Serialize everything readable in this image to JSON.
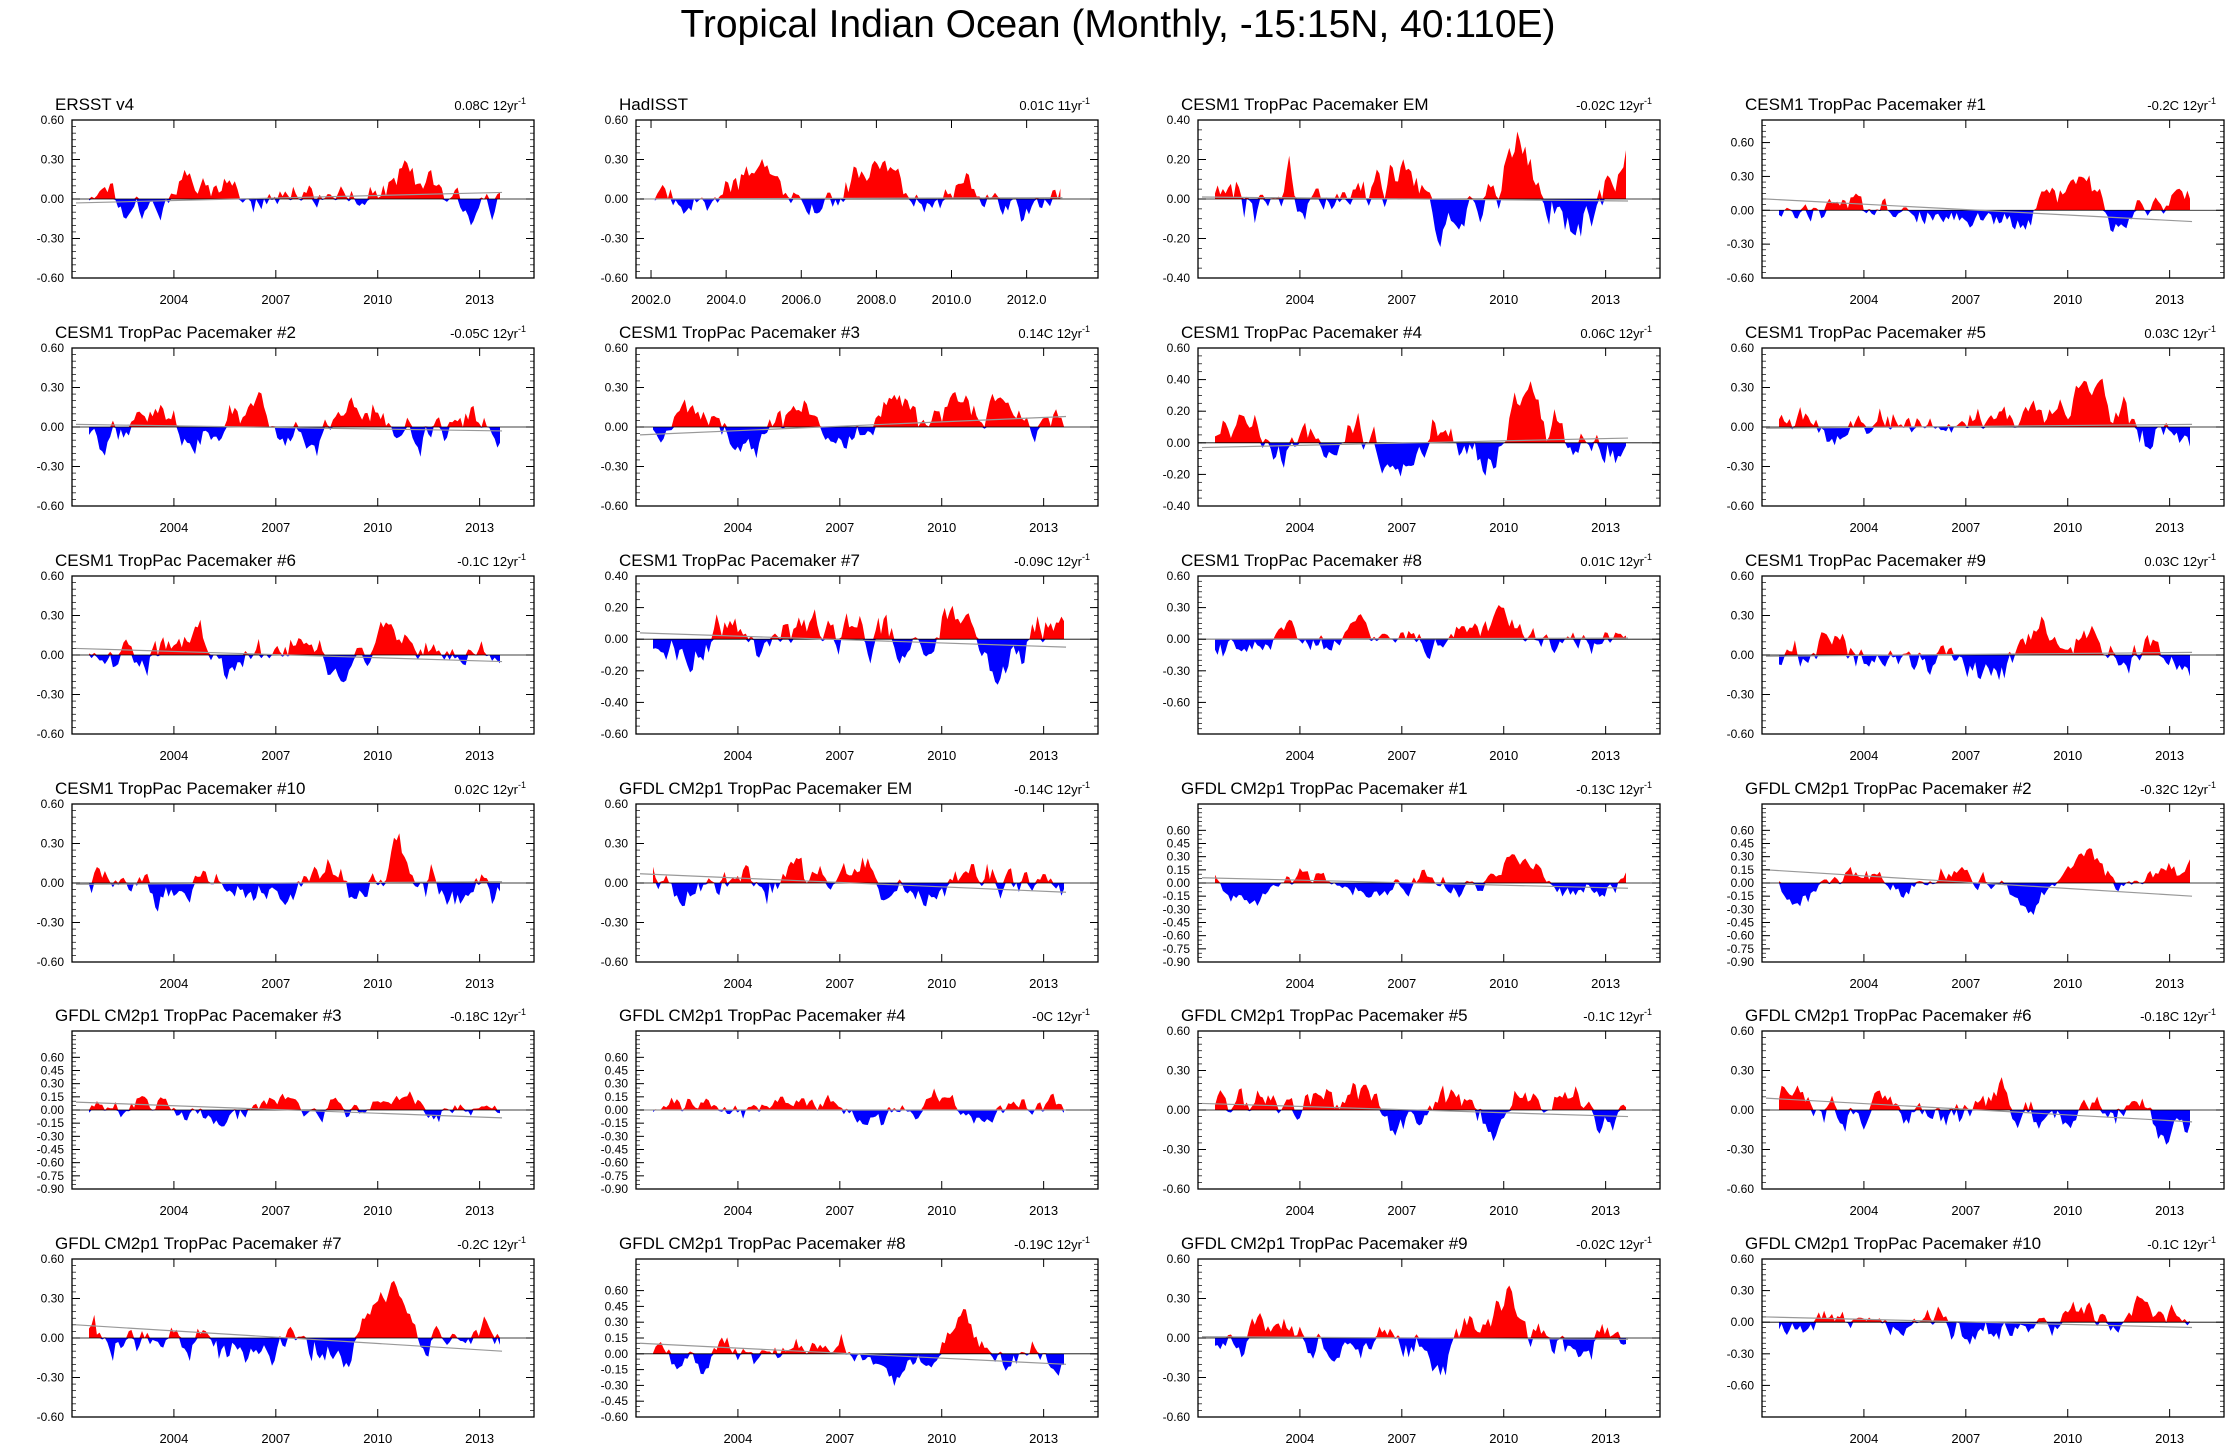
{
  "figure": {
    "title": "Tropical Indian Ocean (Monthly, -15:15N, 40:110E)"
  },
  "colors": {
    "positive": "#ff0000",
    "negative": "#0000ff",
    "axis": "#000000",
    "trend": "#999999"
  },
  "chart_data": [
    {
      "type": "area",
      "name": "ERSST v4",
      "trend_label": "0.08C 12yr",
      "trend_suffix": "-1",
      "ylim": [
        -0.6,
        0.6
      ],
      "yticks": [
        -0.6,
        -0.3,
        0.0,
        0.3,
        0.6
      ],
      "ytick_labels": [
        "-0.60",
        "-0.30",
        "0.00",
        "0.30",
        "0.60"
      ],
      "xlim": [
        2001,
        2014.6
      ],
      "xticks": [
        2004,
        2007,
        2010,
        2013
      ],
      "xtick_labels": [
        "2004",
        "2007",
        "2010",
        "2013"
      ],
      "trend_line": [
        -0.03,
        0.05
      ],
      "seed": 1
    },
    {
      "type": "area",
      "name": "HadISST",
      "trend_label": "0.01C 11yr",
      "trend_suffix": "-1",
      "ylim": [
        -0.6,
        0.6
      ],
      "yticks": [
        -0.6,
        -0.3,
        0.0,
        0.3,
        0.6
      ],
      "ytick_labels": [
        "-0.60",
        "-0.30",
        "0.00",
        "0.30",
        "0.60"
      ],
      "xlim": [
        2001.6,
        2013.9
      ],
      "xticks": [
        2002,
        2004,
        2006,
        2008,
        2010,
        2012
      ],
      "xtick_labels": [
        "2002.0",
        "2004.0",
        "2006.0",
        "2008.0",
        "2010.0",
        "2012.0"
      ],
      "trend_line": [
        0.0,
        0.01
      ],
      "seed": 2
    },
    {
      "type": "area",
      "name": "CESM1 TropPac Pacemaker EM",
      "trend_label": "-0.02C 12yr",
      "trend_suffix": "-1",
      "ylim": [
        -0.4,
        0.4
      ],
      "yticks": [
        -0.4,
        -0.2,
        0.0,
        0.2,
        0.4
      ],
      "ytick_labels": [
        "-0.40",
        "-0.20",
        "0.00",
        "0.20",
        "0.40"
      ],
      "xlim": [
        2001,
        2014.6
      ],
      "xticks": [
        2004,
        2007,
        2010,
        2013
      ],
      "xtick_labels": [
        "2004",
        "2007",
        "2010",
        "2013"
      ],
      "trend_line": [
        0.01,
        -0.01
      ],
      "seed": 3
    },
    {
      "type": "area",
      "name": "CESM1 TropPac Pacemaker #1",
      "trend_label": "-0.2C 12yr",
      "trend_suffix": "-1",
      "ylim": [
        -0.6,
        0.8
      ],
      "yticks": [
        -0.6,
        -0.3,
        0.0,
        0.3,
        0.6
      ],
      "ytick_labels": [
        "-0.60",
        "-0.30",
        "0.00",
        "0.30",
        "0.60"
      ],
      "xlim": [
        2001,
        2014.6
      ],
      "xticks": [
        2004,
        2007,
        2010,
        2013
      ],
      "xtick_labels": [
        "2004",
        "2007",
        "2010",
        "2013"
      ],
      "trend_line": [
        0.1,
        -0.1
      ],
      "seed": 4
    },
    {
      "type": "area",
      "name": "CESM1 TropPac Pacemaker #2",
      "trend_label": "-0.05C 12yr",
      "trend_suffix": "-1",
      "ylim": [
        -0.6,
        0.6
      ],
      "yticks": [
        -0.6,
        -0.3,
        0.0,
        0.3,
        0.6
      ],
      "ytick_labels": [
        "-0.60",
        "-0.30",
        "0.00",
        "0.30",
        "0.60"
      ],
      "xlim": [
        2001,
        2014.6
      ],
      "xticks": [
        2004,
        2007,
        2010,
        2013
      ],
      "xtick_labels": [
        "2004",
        "2007",
        "2010",
        "2013"
      ],
      "trend_line": [
        0.02,
        -0.03
      ],
      "seed": 5
    },
    {
      "type": "area",
      "name": "CESM1 TropPac Pacemaker #3",
      "trend_label": "0.14C 12yr",
      "trend_suffix": "-1",
      "ylim": [
        -0.6,
        0.6
      ],
      "yticks": [
        -0.6,
        -0.3,
        0.0,
        0.3,
        0.6
      ],
      "ytick_labels": [
        "-0.60",
        "-0.30",
        "0.00",
        "0.30",
        "0.60"
      ],
      "xlim": [
        2001,
        2014.6
      ],
      "xticks": [
        2004,
        2007,
        2010,
        2013
      ],
      "xtick_labels": [
        "2004",
        "2007",
        "2010",
        "2013"
      ],
      "trend_line": [
        -0.06,
        0.08
      ],
      "seed": 6
    },
    {
      "type": "area",
      "name": "CESM1 TropPac Pacemaker #4",
      "trend_label": "0.06C 12yr",
      "trend_suffix": "-1",
      "ylim": [
        -0.4,
        0.6
      ],
      "yticks": [
        -0.4,
        -0.2,
        0.0,
        0.2,
        0.4,
        0.6
      ],
      "ytick_labels": [
        "-0.40",
        "-0.20",
        "0.00",
        "0.20",
        "0.40",
        "0.60"
      ],
      "xlim": [
        2001,
        2014.6
      ],
      "xticks": [
        2004,
        2007,
        2010,
        2013
      ],
      "xtick_labels": [
        "2004",
        "2007",
        "2010",
        "2013"
      ],
      "trend_line": [
        -0.03,
        0.03
      ],
      "seed": 7
    },
    {
      "type": "area",
      "name": "CESM1 TropPac Pacemaker #5",
      "trend_label": "0.03C 12yr",
      "trend_suffix": "-1",
      "ylim": [
        -0.6,
        0.6
      ],
      "yticks": [
        -0.6,
        -0.3,
        0.0,
        0.3,
        0.6
      ],
      "ytick_labels": [
        "-0.60",
        "-0.30",
        "0.00",
        "0.30",
        "0.60"
      ],
      "xlim": [
        2001,
        2014.6
      ],
      "xticks": [
        2004,
        2007,
        2010,
        2013
      ],
      "xtick_labels": [
        "2004",
        "2007",
        "2010",
        "2013"
      ],
      "trend_line": [
        -0.01,
        0.02
      ],
      "seed": 8
    },
    {
      "type": "area",
      "name": "CESM1 TropPac Pacemaker #6",
      "trend_label": "-0.1C 12yr",
      "trend_suffix": "-1",
      "ylim": [
        -0.6,
        0.6
      ],
      "yticks": [
        -0.6,
        -0.3,
        0.0,
        0.3,
        0.6
      ],
      "ytick_labels": [
        "-0.60",
        "-0.30",
        "0.00",
        "0.30",
        "0.60"
      ],
      "xlim": [
        2001,
        2014.6
      ],
      "xticks": [
        2004,
        2007,
        2010,
        2013
      ],
      "xtick_labels": [
        "2004",
        "2007",
        "2010",
        "2013"
      ],
      "trend_line": [
        0.05,
        -0.05
      ],
      "seed": 9
    },
    {
      "type": "area",
      "name": "CESM1 TropPac Pacemaker #7",
      "trend_label": "-0.09C 12yr",
      "trend_suffix": "-1",
      "ylim": [
        -0.6,
        0.4
      ],
      "yticks": [
        -0.6,
        -0.4,
        -0.2,
        0.0,
        0.2,
        0.4
      ],
      "ytick_labels": [
        "-0.60",
        "-0.40",
        "-0.20",
        "0.00",
        "0.20",
        "0.40"
      ],
      "xlim": [
        2001,
        2014.6
      ],
      "xticks": [
        2004,
        2007,
        2010,
        2013
      ],
      "xtick_labels": [
        "2004",
        "2007",
        "2010",
        "2013"
      ],
      "trend_line": [
        0.04,
        -0.05
      ],
      "seed": 10
    },
    {
      "type": "area",
      "name": "CESM1 TropPac Pacemaker #8",
      "trend_label": "0.01C 12yr",
      "trend_suffix": "-1",
      "ylim": [
        -0.9,
        0.6
      ],
      "yticks": [
        -0.6,
        -0.3,
        0.0,
        0.3,
        0.6
      ],
      "ytick_labels": [
        "-0.60",
        "-0.30",
        "0.00",
        "0.30",
        "0.60"
      ],
      "xlim": [
        2001,
        2014.6
      ],
      "xticks": [
        2004,
        2007,
        2010,
        2013
      ],
      "xtick_labels": [
        "2004",
        "2007",
        "2010",
        "2013"
      ],
      "trend_line": [
        0.0,
        0.01
      ],
      "seed": 11
    },
    {
      "type": "area",
      "name": "CESM1 TropPac Pacemaker #9",
      "trend_label": "0.03C 12yr",
      "trend_suffix": "-1",
      "ylim": [
        -0.6,
        0.6
      ],
      "yticks": [
        -0.6,
        -0.3,
        0.0,
        0.3,
        0.6
      ],
      "ytick_labels": [
        "-0.60",
        "-0.30",
        "0.00",
        "0.30",
        "0.60"
      ],
      "xlim": [
        2001,
        2014.6
      ],
      "xticks": [
        2004,
        2007,
        2010,
        2013
      ],
      "xtick_labels": [
        "2004",
        "2007",
        "2010",
        "2013"
      ],
      "trend_line": [
        -0.01,
        0.02
      ],
      "seed": 12
    },
    {
      "type": "area",
      "name": "CESM1 TropPac Pacemaker #10",
      "trend_label": "0.02C 12yr",
      "trend_suffix": "-1",
      "ylim": [
        -0.6,
        0.6
      ],
      "yticks": [
        -0.6,
        -0.3,
        0.0,
        0.3,
        0.6
      ],
      "ytick_labels": [
        "-0.60",
        "-0.30",
        "0.00",
        "0.30",
        "0.60"
      ],
      "xlim": [
        2001,
        2014.6
      ],
      "xticks": [
        2004,
        2007,
        2010,
        2013
      ],
      "xtick_labels": [
        "2004",
        "2007",
        "2010",
        "2013"
      ],
      "trend_line": [
        -0.01,
        0.01
      ],
      "seed": 13
    },
    {
      "type": "area",
      "name": "GFDL CM2p1 TropPac Pacemaker EM",
      "trend_label": "-0.14C 12yr",
      "trend_suffix": "-1",
      "ylim": [
        -0.6,
        0.6
      ],
      "yticks": [
        -0.6,
        -0.3,
        0.0,
        0.3,
        0.6
      ],
      "ytick_labels": [
        "-0.60",
        "-0.30",
        "0.00",
        "0.30",
        "0.60"
      ],
      "xlim": [
        2001,
        2014.6
      ],
      "xticks": [
        2004,
        2007,
        2010,
        2013
      ],
      "xtick_labels": [
        "2004",
        "2007",
        "2010",
        "2013"
      ],
      "trend_line": [
        0.07,
        -0.07
      ],
      "seed": 14
    },
    {
      "type": "area",
      "name": "GFDL CM2p1 TropPac Pacemaker #1",
      "trend_label": "-0.13C 12yr",
      "trend_suffix": "-1",
      "ylim": [
        -0.9,
        0.9
      ],
      "yticks": [
        -0.9,
        -0.75,
        -0.6,
        -0.45,
        -0.3,
        -0.15,
        0.0,
        0.15,
        0.3,
        0.45,
        0.6
      ],
      "ytick_labels": [
        "-0.90",
        "-0.75",
        "-0.60",
        "-0.45",
        "-0.30",
        "-0.15",
        "0.00",
        "0.15",
        "0.30",
        "0.45",
        "0.60"
      ],
      "xlim": [
        2001,
        2014.6
      ],
      "xticks": [
        2004,
        2007,
        2010,
        2013
      ],
      "xtick_labels": [
        "2004",
        "2007",
        "2010",
        "2013"
      ],
      "trend_line": [
        0.06,
        -0.06
      ],
      "seed": 15
    },
    {
      "type": "area",
      "name": "GFDL CM2p1 TropPac Pacemaker #2",
      "trend_label": "-0.32C 12yr",
      "trend_suffix": "-1",
      "ylim": [
        -0.9,
        0.9
      ],
      "yticks": [
        -0.9,
        -0.75,
        -0.6,
        -0.45,
        -0.3,
        -0.15,
        0.0,
        0.15,
        0.3,
        0.45,
        0.6
      ],
      "ytick_labels": [
        "-0.90",
        "-0.75",
        "-0.60",
        "-0.45",
        "-0.30",
        "-0.15",
        "0.00",
        "0.15",
        "0.30",
        "0.45",
        "0.60"
      ],
      "xlim": [
        2001,
        2014.6
      ],
      "xticks": [
        2004,
        2007,
        2010,
        2013
      ],
      "xtick_labels": [
        "2004",
        "2007",
        "2010",
        "2013"
      ],
      "trend_line": [
        0.15,
        -0.15
      ],
      "seed": 16
    },
    {
      "type": "area",
      "name": "GFDL CM2p1 TropPac Pacemaker #3",
      "trend_label": "-0.18C 12yr",
      "trend_suffix": "-1",
      "ylim": [
        -0.9,
        0.9
      ],
      "yticks": [
        -0.9,
        -0.75,
        -0.6,
        -0.45,
        -0.3,
        -0.15,
        0.0,
        0.15,
        0.3,
        0.45,
        0.6
      ],
      "ytick_labels": [
        "-0.90",
        "-0.75",
        "-0.60",
        "-0.45",
        "-0.30",
        "-0.15",
        "0.00",
        "0.15",
        "0.30",
        "0.45",
        "0.60"
      ],
      "xlim": [
        2001,
        2014.6
      ],
      "xticks": [
        2004,
        2007,
        2010,
        2013
      ],
      "xtick_labels": [
        "2004",
        "2007",
        "2010",
        "2013"
      ],
      "trend_line": [
        0.09,
        -0.09
      ],
      "seed": 17
    },
    {
      "type": "area",
      "name": "GFDL CM2p1 TropPac Pacemaker #4",
      "trend_label": "-0C 12yr",
      "trend_suffix": "-1",
      "ylim": [
        -0.9,
        0.9
      ],
      "yticks": [
        -0.9,
        -0.75,
        -0.6,
        -0.45,
        -0.3,
        -0.15,
        0.0,
        0.15,
        0.3,
        0.45,
        0.6
      ],
      "ytick_labels": [
        "-0.90",
        "-0.75",
        "-0.60",
        "-0.45",
        "-0.30",
        "-0.15",
        "0.00",
        "0.15",
        "0.30",
        "0.45",
        "0.60"
      ],
      "xlim": [
        2001,
        2014.6
      ],
      "xticks": [
        2004,
        2007,
        2010,
        2013
      ],
      "xtick_labels": [
        "2004",
        "2007",
        "2010",
        "2013"
      ],
      "trend_line": [
        0.0,
        0.0
      ],
      "seed": 18
    },
    {
      "type": "area",
      "name": "GFDL CM2p1 TropPac Pacemaker #5",
      "trend_label": "-0.1C 12yr",
      "trend_suffix": "-1",
      "ylim": [
        -0.6,
        0.6
      ],
      "yticks": [
        -0.6,
        -0.3,
        0.0,
        0.3,
        0.6
      ],
      "ytick_labels": [
        "-0.60",
        "-0.30",
        "0.00",
        "0.30",
        "0.60"
      ],
      "xlim": [
        2001,
        2014.6
      ],
      "xticks": [
        2004,
        2007,
        2010,
        2013
      ],
      "xtick_labels": [
        "2004",
        "2007",
        "2010",
        "2013"
      ],
      "trend_line": [
        0.05,
        -0.05
      ],
      "seed": 19
    },
    {
      "type": "area",
      "name": "GFDL CM2p1 TropPac Pacemaker #6",
      "trend_label": "-0.18C 12yr",
      "trend_suffix": "-1",
      "ylim": [
        -0.6,
        0.6
      ],
      "yticks": [
        -0.6,
        -0.3,
        0.0,
        0.3,
        0.6
      ],
      "ytick_labels": [
        "-0.60",
        "-0.30",
        "0.00",
        "0.30",
        "0.60"
      ],
      "xlim": [
        2001,
        2014.6
      ],
      "xticks": [
        2004,
        2007,
        2010,
        2013
      ],
      "xtick_labels": [
        "2004",
        "2007",
        "2010",
        "2013"
      ],
      "trend_line": [
        0.09,
        -0.09
      ],
      "seed": 20
    },
    {
      "type": "area",
      "name": "GFDL CM2p1 TropPac Pacemaker #7",
      "trend_label": "-0.2C 12yr",
      "trend_suffix": "-1",
      "ylim": [
        -0.6,
        0.6
      ],
      "yticks": [
        -0.6,
        -0.3,
        0.0,
        0.3,
        0.6
      ],
      "ytick_labels": [
        "-0.60",
        "-0.30",
        "0.00",
        "0.30",
        "0.60"
      ],
      "xlim": [
        2001,
        2014.6
      ],
      "xticks": [
        2004,
        2007,
        2010,
        2013
      ],
      "xtick_labels": [
        "2004",
        "2007",
        "2010",
        "2013"
      ],
      "trend_line": [
        0.1,
        -0.1
      ],
      "seed": 21
    },
    {
      "type": "area",
      "name": "GFDL CM2p1 TropPac Pacemaker #8",
      "trend_label": "-0.19C 12yr",
      "trend_suffix": "-1",
      "ylim": [
        -0.6,
        0.9
      ],
      "yticks": [
        -0.6,
        -0.45,
        -0.3,
        -0.15,
        0.0,
        0.15,
        0.3,
        0.45,
        0.6
      ],
      "ytick_labels": [
        "-0.60",
        "-0.45",
        "-0.30",
        "-0.15",
        "0.00",
        "0.15",
        "0.30",
        "0.45",
        "0.60"
      ],
      "xlim": [
        2001,
        2014.6
      ],
      "xticks": [
        2004,
        2007,
        2010,
        2013
      ],
      "xtick_labels": [
        "2004",
        "2007",
        "2010",
        "2013"
      ],
      "trend_line": [
        0.1,
        -0.1
      ],
      "seed": 22
    },
    {
      "type": "area",
      "name": "GFDL CM2p1 TropPac Pacemaker #9",
      "trend_label": "-0.02C 12yr",
      "trend_suffix": "-1",
      "ylim": [
        -0.6,
        0.6
      ],
      "yticks": [
        -0.6,
        -0.3,
        0.0,
        0.3,
        0.6
      ],
      "ytick_labels": [
        "-0.60",
        "-0.30",
        "0.00",
        "0.30",
        "0.60"
      ],
      "xlim": [
        2001,
        2014.6
      ],
      "xticks": [
        2004,
        2007,
        2010,
        2013
      ],
      "xtick_labels": [
        "2004",
        "2007",
        "2010",
        "2013"
      ],
      "trend_line": [
        0.01,
        -0.01
      ],
      "seed": 23
    },
    {
      "type": "area",
      "name": "GFDL CM2p1 TropPac Pacemaker #10",
      "trend_label": "-0.1C 12yr",
      "trend_suffix": "-1",
      "ylim": [
        -0.9,
        0.6
      ],
      "yticks": [
        -0.6,
        -0.3,
        0.0,
        0.3,
        0.6
      ],
      "ytick_labels": [
        "-0.60",
        "-0.30",
        "0.00",
        "0.30",
        "0.60"
      ],
      "xlim": [
        2001,
        2014.6
      ],
      "xticks": [
        2004,
        2007,
        2010,
        2013
      ],
      "xtick_labels": [
        "2004",
        "2007",
        "2010",
        "2013"
      ],
      "trend_line": [
        0.05,
        -0.05
      ],
      "seed": 24
    }
  ]
}
